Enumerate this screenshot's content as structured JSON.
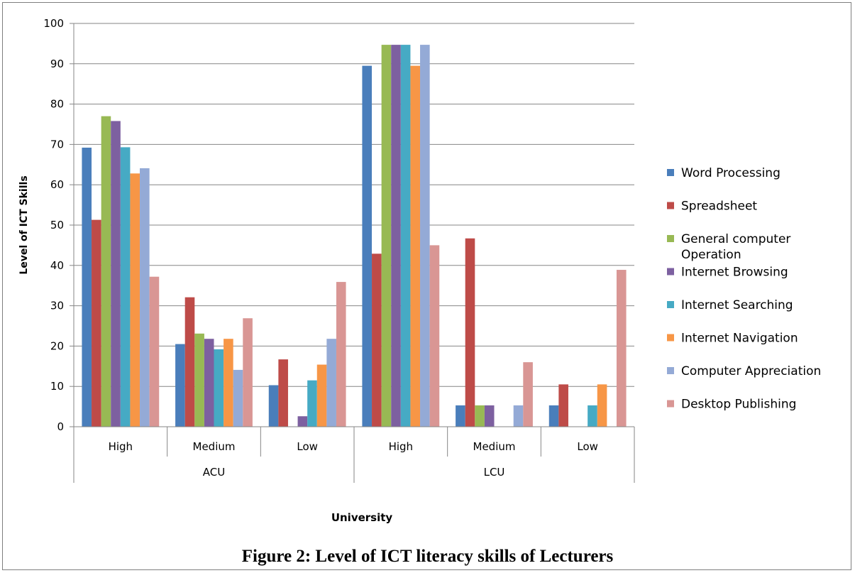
{
  "caption": "Figure 2: Level of ICT  literacy skills of Lecturers",
  "chart_data": {
    "type": "bar",
    "title": "",
    "xlabel": "University",
    "ylabel": "Level of ICT Skills",
    "ylim": [
      0,
      100
    ],
    "yticks": [
      0,
      10,
      20,
      30,
      40,
      50,
      60,
      70,
      80,
      90,
      100
    ],
    "grid": true,
    "legend_position": "right",
    "groups": [
      {
        "label": "ACU",
        "categories": [
          "High",
          "Medium",
          "Low"
        ]
      },
      {
        "label": "LCU",
        "categories": [
          "High",
          "Medium",
          "Low"
        ]
      }
    ],
    "categories": [
      "High",
      "Medium",
      "Low",
      "High",
      "Medium",
      "Low"
    ],
    "series": [
      {
        "name": "Word Processing",
        "color": "#4a7ebb",
        "values": [
          69.2,
          20.5,
          10.3,
          89.5,
          5.3,
          5.3
        ]
      },
      {
        "name": "Spreadsheet",
        "color": "#be4b48",
        "values": [
          51.3,
          32.1,
          16.7,
          42.9,
          46.7,
          10.5
        ]
      },
      {
        "name": "General computer Operation",
        "color": "#98b954",
        "values": [
          77.0,
          23.1,
          0,
          94.7,
          5.3,
          0
        ]
      },
      {
        "name": "Internet Browsing",
        "color": "#7d60a0",
        "values": [
          75.8,
          21.8,
          2.6,
          94.7,
          5.3,
          0
        ]
      },
      {
        "name": "Internet Searching",
        "color": "#46aac4",
        "values": [
          69.3,
          19.2,
          11.5,
          94.7,
          0,
          5.3
        ]
      },
      {
        "name": "Internet Navigation",
        "color": "#f79646",
        "values": [
          62.8,
          21.8,
          15.4,
          89.5,
          0,
          10.5
        ]
      },
      {
        "name": "Computer Appreciation",
        "color": "#94aad6",
        "values": [
          64.1,
          14.1,
          21.8,
          94.7,
          5.3,
          0
        ]
      },
      {
        "name": "Desktop Publishing",
        "color": "#d99694",
        "values": [
          37.2,
          26.9,
          35.9,
          45.0,
          16.0,
          38.9
        ]
      }
    ]
  }
}
